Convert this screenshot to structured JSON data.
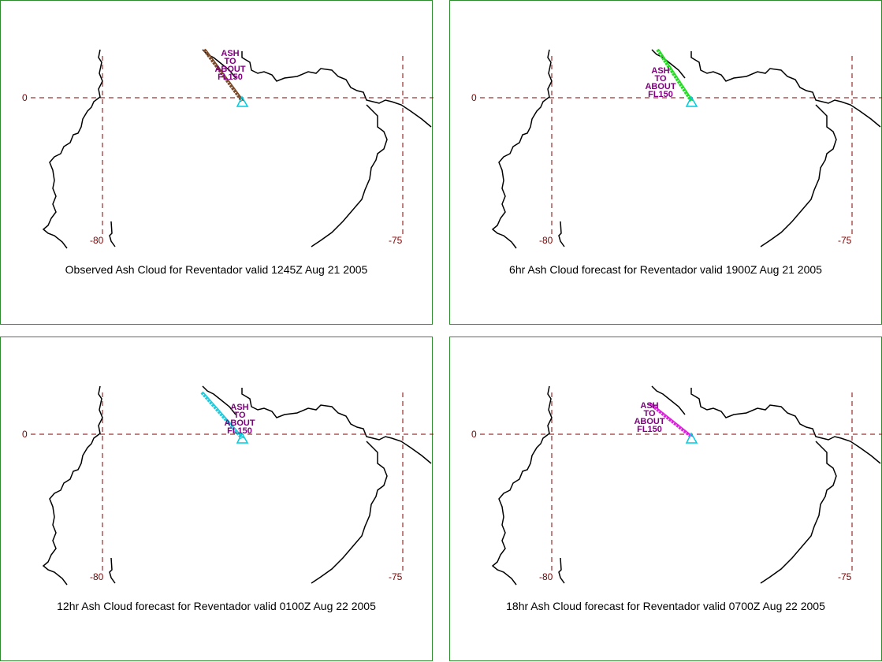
{
  "panels": [
    {
      "caption": "Observed Ash Cloud for Reventador valid 1245Z Aug 21 2005",
      "ash_color": "#7a4a2a",
      "ash_label": [
        "ASH",
        "TO",
        "ABOUT",
        "FL150"
      ],
      "lat_label": "0",
      "lon_labels": [
        "-80",
        "-75"
      ]
    },
    {
      "caption": "6hr Ash Cloud forecast for Reventador valid 1900Z Aug 21 2005",
      "ash_color": "#22dd22",
      "ash_label": [
        "ASH",
        "TO",
        "ABOUT",
        "FL150"
      ],
      "lat_label": "0",
      "lon_labels": [
        "-80",
        "-75"
      ]
    },
    {
      "caption": "12hr Ash Cloud forecast for Reventador valid 0100Z Aug 22 2005",
      "ash_color": "#22ccdd",
      "ash_label": [
        "ASH",
        "TO",
        "ABOUT",
        "FL150"
      ],
      "lat_label": "0",
      "lon_labels": [
        "-80",
        "-75"
      ]
    },
    {
      "caption": "18hr Ash Cloud forecast for Reventador valid 0700Z Aug 22 2005",
      "ash_color": "#dd22dd",
      "ash_label": [
        "ASH",
        "TO",
        "ABOUT",
        "FL150"
      ],
      "lat_label": "0",
      "lon_labels": [
        "-80",
        "-75"
      ]
    }
  ],
  "colors": {
    "panel_border": "#2e8b2e",
    "grid": "#800000",
    "coast": "#000000",
    "volcano_marker": "#00ccdd",
    "ash_text": "#800080"
  }
}
